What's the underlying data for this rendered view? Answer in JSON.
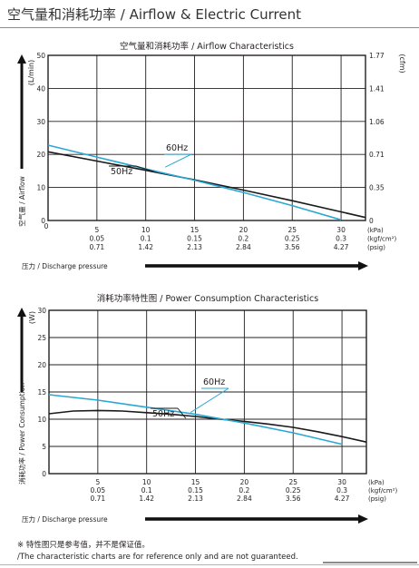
{
  "page": {
    "title": "空气量和消耗功率 / Airflow & Electric Current",
    "footnote": "※ 特性图只是参考值，并不是保证值。",
    "footnote_en": "/The characteristic charts are for reference only and are not guaranteed."
  },
  "colors": {
    "hz50": "#1a1a1a",
    "hz60": "#2aa7d4",
    "grid": "#231f20"
  },
  "pressure_axis": {
    "kpa": [
      "5",
      "10",
      "15",
      "20",
      "25",
      "30"
    ],
    "kgf": [
      "0.05",
      "0.1",
      "0.15",
      "0.2",
      "0.25",
      "0.3"
    ],
    "psig": [
      "0.71",
      "1.42",
      "2.13",
      "2.84",
      "3.56",
      "4.27"
    ],
    "units": [
      "(kPa)",
      "(kgf/cm²)",
      "(psig)"
    ],
    "label": "压力 / Discharge pressure"
  },
  "chart_data": [
    {
      "type": "line",
      "title": "空气量和消耗功率 / Airflow Characteristics",
      "xlabel": "压力 / Discharge pressure",
      "ylabel": "空气量 / Airflow",
      "y_unit": "(L/min)",
      "y2_unit": "(cfm)",
      "x_ticks": [
        5,
        10,
        15,
        20,
        25,
        30
      ],
      "y_ticks": [
        "0",
        "10",
        "20",
        "30",
        "40",
        "50"
      ],
      "y2_ticks": [
        "0",
        "0.35",
        "0.71",
        "1.06",
        "1.41",
        "1.77"
      ],
      "xlim": [
        0,
        32.5
      ],
      "ylim": [
        0,
        50
      ],
      "grid": true,
      "series": [
        {
          "name": "50Hz",
          "color": "#1a1a1a",
          "x": [
            0,
            5,
            10,
            15,
            20,
            25,
            30,
            32.5
          ],
          "y": [
            20.8,
            18.0,
            15.2,
            12.3,
            9.2,
            6.0,
            2.6,
            0.9
          ]
        },
        {
          "name": "60Hz",
          "color": "#2aa7d4",
          "x": [
            0,
            5,
            10,
            15,
            20,
            25,
            30
          ],
          "y": [
            22.8,
            19.2,
            15.6,
            12.2,
            8.5,
            4.5,
            0.2
          ]
        }
      ],
      "annotations": [
        "60Hz",
        "50Hz"
      ]
    },
    {
      "type": "line",
      "title": "消耗功率特性图 / Power Consumption Characteristics",
      "xlabel": "压力 / Discharge pressure",
      "ylabel": "消耗功率 / Power Consumption",
      "y_unit": "(W)",
      "x_ticks": [
        5,
        10,
        15,
        20,
        25,
        30
      ],
      "y_ticks": [
        "0",
        "5",
        "10",
        "15",
        "20",
        "25",
        "30"
      ],
      "xlim": [
        0,
        32.5
      ],
      "ylim": [
        0,
        30
      ],
      "grid": true,
      "series": [
        {
          "name": "50Hz",
          "color": "#1a1a1a",
          "x": [
            0,
            2.5,
            5,
            7.5,
            10,
            12.5,
            15,
            17.5,
            20,
            22.5,
            25,
            27.5,
            30,
            32.5
          ],
          "y": [
            11.0,
            11.5,
            11.6,
            11.5,
            11.2,
            10.9,
            10.5,
            10.0,
            9.6,
            9.1,
            8.5,
            7.7,
            6.8,
            5.8
          ]
        },
        {
          "name": "60Hz",
          "color": "#2aa7d4",
          "x": [
            0,
            5,
            10,
            15,
            20,
            25,
            30
          ],
          "y": [
            14.5,
            13.5,
            12.2,
            10.9,
            9.3,
            7.5,
            5.4
          ]
        }
      ],
      "annotations": [
        "60Hz",
        "50Hz"
      ]
    }
  ]
}
